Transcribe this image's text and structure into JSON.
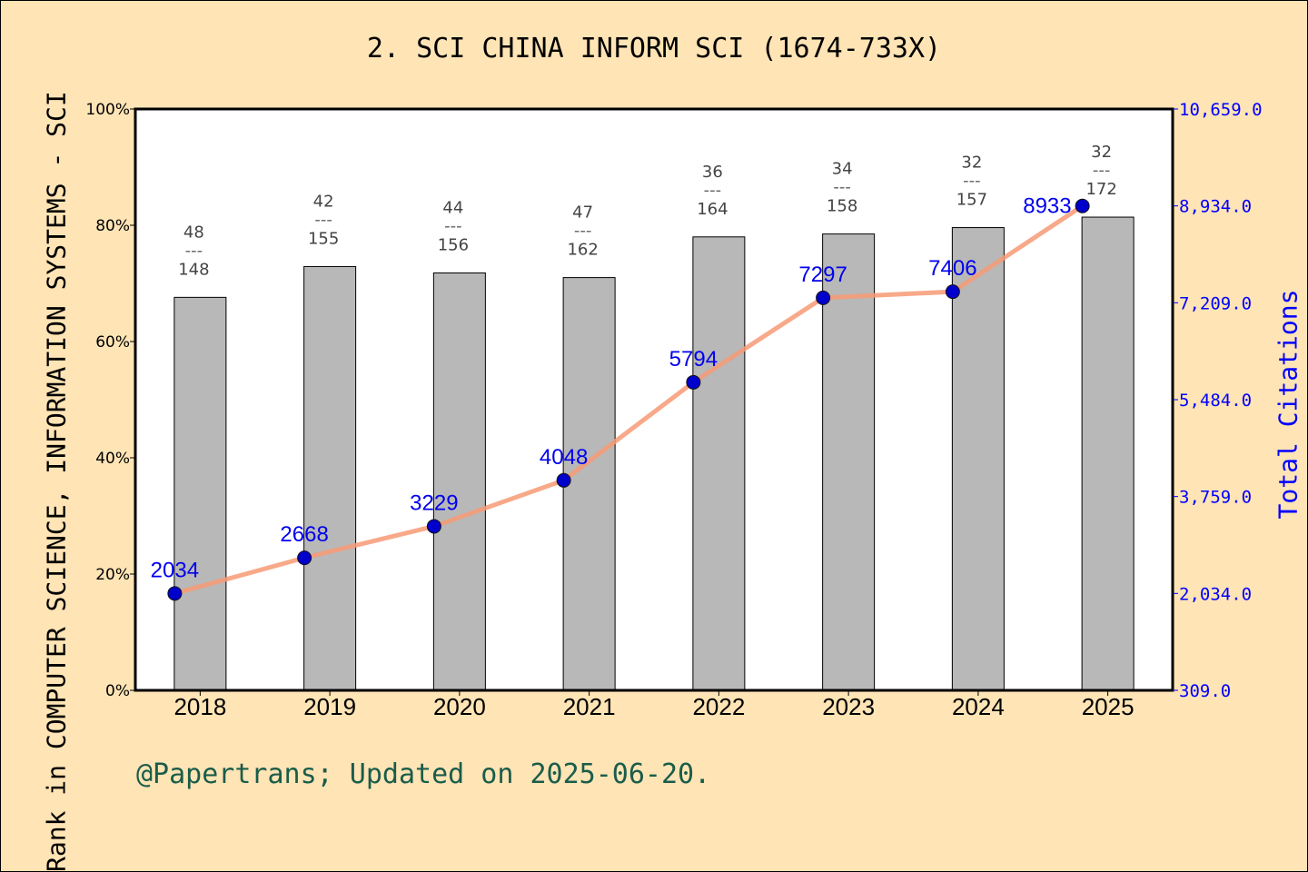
{
  "chart_data": {
    "type": "bar+line",
    "title": "2. SCI CHINA INFORM SCI (1674-733X)",
    "ylabel": "Rank in COMPUTER SCIENCE, INFORMATION SYSTEMS - SCI",
    "y2label": "Total Citations",
    "categories": [
      "2018",
      "2019",
      "2020",
      "2021",
      "2022",
      "2023",
      "2024",
      "2025"
    ],
    "ylim": [
      0,
      100
    ],
    "yticks": [
      "0%",
      "20%",
      "40%",
      "60%",
      "80%",
      "100%"
    ],
    "y2lim": [
      309.0,
      10659.0
    ],
    "y2ticks": [
      "309.0",
      "2,034.0",
      "3,759.0",
      "5,484.0",
      "7,209.0",
      "8,934.0",
      "10,659.0"
    ],
    "bars": {
      "percentile": [
        67.6,
        72.9,
        71.8,
        71.0,
        78.0,
        78.5,
        79.6,
        81.4
      ],
      "rank": [
        "48",
        "42",
        "44",
        "47",
        "36",
        "34",
        "32",
        "32"
      ],
      "total": [
        "148",
        "155",
        "156",
        "162",
        "164",
        "158",
        "157",
        "172"
      ],
      "separator": "---",
      "color": "#b8b8b8"
    },
    "line": {
      "values": [
        2034,
        2668,
        3229,
        4048,
        5794,
        7297,
        7406,
        8933
      ],
      "labels": [
        "2034",
        "2668",
        "3229",
        "4048",
        "5794",
        "7297",
        "7406",
        "8933"
      ],
      "line_color": "#f79a74",
      "marker_color": "#0000cc"
    },
    "grid": false
  },
  "footer": "@Papertrans; Updated on 2025-06-20."
}
